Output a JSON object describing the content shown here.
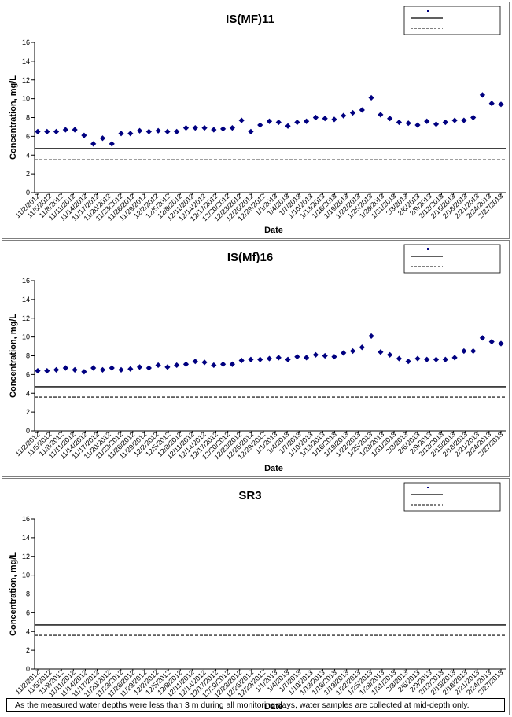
{
  "chart_data": [
    {
      "type": "scatter",
      "title": "IS(MF)11",
      "xlabel": "Date",
      "ylabel": "Concentration, mg/L",
      "ylim": [
        0,
        16
      ],
      "yticks": [
        0,
        2,
        4,
        6,
        8,
        10,
        12,
        14,
        16
      ],
      "grid": false,
      "legend_position": "top-right",
      "xticks": [
        "11/2/2012",
        "11/5/2012",
        "11/8/2012",
        "11/11/2012",
        "11/14/2012",
        "11/17/2012",
        "11/20/2012",
        "11/23/2012",
        "11/26/2012",
        "11/29/2012",
        "12/2/2012",
        "12/5/2012",
        "12/8/2012",
        "12/11/2012",
        "12/14/2012",
        "12/17/2012",
        "12/20/2012",
        "12/23/2012",
        "12/26/2012",
        "12/29/2012",
        "1/1/2013",
        "1/4/2013",
        "1/7/2013",
        "1/10/2013",
        "1/13/2013",
        "1/16/2013",
        "1/19/2013",
        "1/22/2013",
        "1/25/2013",
        "1/28/2013",
        "1/31/2013",
        "2/3/2013",
        "2/6/2013",
        "2/9/2013",
        "2/12/2013",
        "2/15/2013",
        "2/18/2013",
        "2/21/2013",
        "2/24/2013",
        "2/27/2013"
      ],
      "series": [
        {
          "marker": "diamond",
          "color": "#000080",
          "y": [
            6.5,
            6.5,
            6.5,
            6.7,
            6.7,
            6.1,
            5.2,
            5.8,
            5.2,
            6.3,
            6.3,
            6.6,
            6.5,
            6.6,
            6.5,
            6.5,
            6.9,
            6.9,
            6.9,
            6.7,
            6.8,
            6.9,
            7.7,
            6.5,
            7.2,
            7.6,
            7.5,
            7.1,
            7.5,
            7.6,
            8.0,
            7.9,
            7.8,
            8.2,
            8.5,
            8.8,
            10.1,
            8.3,
            7.9,
            7.5,
            7.4,
            7.2,
            7.6,
            7.3,
            7.5,
            7.7,
            7.7,
            8.0,
            10.4,
            9.5,
            9.4
          ]
        }
      ],
      "hlines": [
        {
          "value": 4.7,
          "style": "solid"
        },
        {
          "value": 3.5,
          "style": "dashed"
        }
      ]
    },
    {
      "type": "scatter",
      "title": "IS(Mf)16",
      "xlabel": "Date",
      "ylabel": "Concentration, mg/L",
      "ylim": [
        0,
        16
      ],
      "yticks": [
        0,
        2,
        4,
        6,
        8,
        10,
        12,
        14,
        16
      ],
      "grid": false,
      "legend_position": "top-right",
      "xticks": [
        "11/2/2012",
        "11/5/2012",
        "11/8/2012",
        "11/11/2012",
        "11/14/2012",
        "11/17/2012",
        "11/20/2012",
        "11/23/2012",
        "11/26/2012",
        "11/29/2012",
        "12/2/2012",
        "12/5/2012",
        "12/8/2012",
        "12/11/2012",
        "12/14/2012",
        "12/17/2012",
        "12/20/2012",
        "12/23/2012",
        "12/26/2012",
        "12/29/2012",
        "1/1/2013",
        "1/4/2013",
        "1/7/2013",
        "1/10/2013",
        "1/13/2013",
        "1/16/2013",
        "1/19/2013",
        "1/22/2013",
        "1/25/2013",
        "1/28/2013",
        "1/31/2013",
        "2/3/2013",
        "2/6/2013",
        "2/9/2013",
        "2/12/2013",
        "2/15/2013",
        "2/18/2013",
        "2/21/2013",
        "2/24/2013",
        "2/27/2013"
      ],
      "series": [
        {
          "marker": "diamond",
          "color": "#000080",
          "y": [
            6.4,
            6.4,
            6.5,
            6.7,
            6.5,
            6.3,
            6.7,
            6.5,
            6.7,
            6.5,
            6.6,
            6.8,
            6.7,
            7.0,
            6.8,
            7.0,
            7.1,
            7.4,
            7.3,
            7.0,
            7.1,
            7.1,
            7.5,
            7.6,
            7.6,
            7.7,
            7.8,
            7.6,
            7.9,
            7.8,
            8.1,
            8.0,
            7.9,
            8.3,
            8.5,
            8.9,
            10.1,
            8.4,
            8.1,
            7.7,
            7.4,
            7.7,
            7.6,
            7.6,
            7.6,
            7.8,
            8.5,
            8.5,
            9.9,
            9.5,
            9.3
          ]
        }
      ],
      "hlines": [
        {
          "value": 4.7,
          "style": "solid"
        },
        {
          "value": 3.6,
          "style": "dashed"
        }
      ]
    },
    {
      "type": "scatter",
      "title": "SR3",
      "xlabel": "Date",
      "ylabel": "Concentration, mg/L",
      "ylim": [
        0,
        16
      ],
      "yticks": [
        0,
        2,
        4,
        6,
        8,
        10,
        12,
        14,
        16
      ],
      "grid": false,
      "legend_position": "top-right",
      "xticks": [
        "11/2/2012",
        "11/5/2012",
        "11/8/2012",
        "11/11/2012",
        "11/14/2012",
        "11/17/2012",
        "11/20/2012",
        "11/23/2012",
        "11/26/2012",
        "11/29/2012",
        "12/2/2012",
        "12/5/2012",
        "12/8/2012",
        "12/11/2012",
        "12/14/2012",
        "12/17/2012",
        "12/20/2012",
        "12/23/2012",
        "12/26/2012",
        "12/29/2012",
        "1/1/2013",
        "1/4/2013",
        "1/7/2013",
        "1/10/2013",
        "1/13/2013",
        "1/16/2013",
        "1/19/2013",
        "1/22/2013",
        "1/25/2013",
        "1/28/2013",
        "1/31/2013",
        "2/3/2013",
        "2/6/2013",
        "2/9/2013",
        "2/12/2013",
        "2/15/2013",
        "2/18/2013",
        "2/21/2013",
        "2/24/2013",
        "2/27/2013"
      ],
      "series": [
        {
          "marker": "diamond",
          "color": "#000080",
          "y": []
        }
      ],
      "hlines": [
        {
          "value": 4.7,
          "style": "solid"
        },
        {
          "value": 3.6,
          "style": "dashed"
        }
      ]
    }
  ],
  "footnote": "As the measured water depths were less than 3 m during all monitoring days, water samples are collected  at mid-depth only."
}
